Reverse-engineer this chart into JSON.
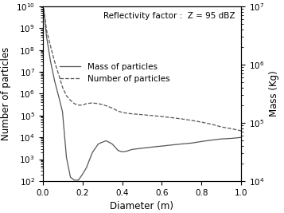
{
  "title_annotation": "Reflectivity factor :  Z = 95 dBZ",
  "xlabel": "Diameter (m)",
  "ylabel_left": "Number of particles",
  "ylabel_right": "Mass (Kg)",
  "xlim": [
    0,
    1
  ],
  "ylim_left": [
    100.0,
    10000000000.0
  ],
  "ylim_right": [
    10000.0,
    10000000.0
  ],
  "line_color": "#555555",
  "mass_x": [
    0.005,
    0.01,
    0.02,
    0.04,
    0.06,
    0.08,
    0.1,
    0.12,
    0.14,
    0.16,
    0.18,
    0.2,
    0.22,
    0.25,
    0.28,
    0.3,
    0.32,
    0.35,
    0.38,
    0.4,
    0.42,
    0.45,
    0.5,
    0.55,
    0.6,
    0.65,
    0.7,
    0.75,
    0.8,
    0.85,
    0.9,
    0.95,
    1.0
  ],
  "mass_y": [
    8000000000.0,
    3000000000.0,
    400000000.0,
    30000000.0,
    4000000.0,
    800000.0,
    150000.0,
    1200.0,
    150.0,
    110.0,
    110.0,
    200.0,
    400.0,
    2000.0,
    5000.0,
    6000.0,
    7000.0,
    5000.0,
    2500.0,
    2200.0,
    2300.0,
    2800.0,
    3200.0,
    3600.0,
    4000.0,
    4500.0,
    5000.0,
    5500.0,
    6500.0,
    7500.0,
    8500.0,
    9000.0,
    10000.0
  ],
  "number_x": [
    0.005,
    0.01,
    0.02,
    0.04,
    0.06,
    0.08,
    0.1,
    0.12,
    0.14,
    0.16,
    0.18,
    0.2,
    0.22,
    0.25,
    0.28,
    0.3,
    0.32,
    0.35,
    0.38,
    0.4,
    0.42,
    0.45,
    0.5,
    0.55,
    0.6,
    0.65,
    0.7,
    0.75,
    0.8,
    0.85,
    0.9,
    0.95,
    1.0
  ],
  "number_y": [
    8000000000.0,
    4000000000.0,
    800000000.0,
    150000000.0,
    30000000.0,
    8000000.0,
    2000000.0,
    800000.0,
    500000.0,
    350000.0,
    300000.0,
    300000.0,
    350000.0,
    380000.0,
    350000.0,
    320000.0,
    280000.0,
    220000.0,
    160000.0,
    140000.0,
    130000.0,
    120000.0,
    110000.0,
    100000.0,
    90000.0,
    80000.0,
    70000.0,
    60000.0,
    50000.0,
    40000.0,
    30000.0,
    25000.0,
    20000.0
  ],
  "legend_labels": [
    "Mass of particles",
    "Number of particles"
  ],
  "xticks": [
    0,
    0.2,
    0.4,
    0.6,
    0.8,
    1.0
  ]
}
